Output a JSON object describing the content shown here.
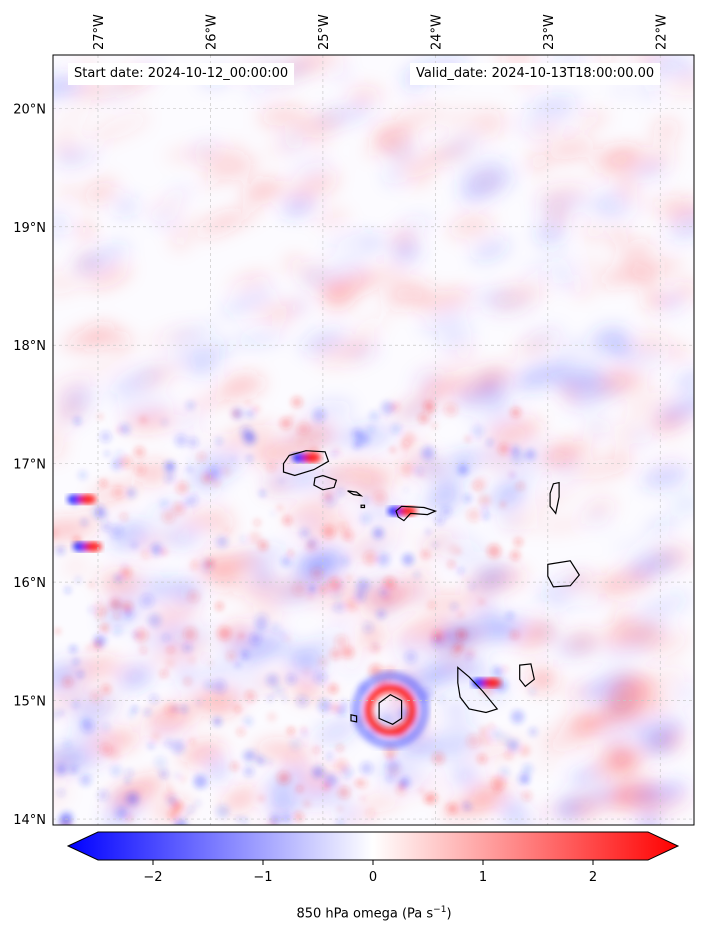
{
  "header": {
    "start_label": "Start date: 2024-10-12_00:00:00",
    "valid_label": "Valid_date: 2024-10-13T18:00:00.00"
  },
  "axes": {
    "lon_ticks": [
      "27°W",
      "26°W",
      "25°W",
      "24°W",
      "23°W",
      "22°W"
    ],
    "lat_ticks": [
      "20°N",
      "19°N",
      "18°N",
      "17°N",
      "16°N",
      "15°N",
      "14°N"
    ],
    "lon_values": [
      -27,
      -26,
      -25,
      -24,
      -23,
      -22
    ],
    "lat_values": [
      20,
      19,
      18,
      17,
      16,
      15,
      14
    ],
    "lon_range": [
      -27.4,
      -21.7
    ],
    "lat_range": [
      13.95,
      20.45
    ],
    "gridlines": true
  },
  "colorbar": {
    "title": "850 hPa omega (Pa s",
    "title_exp": "−1",
    "title_suffix": ")",
    "tick_labels": [
      "−2",
      "−1",
      "0",
      "1",
      "2"
    ],
    "tick_values": [
      -2,
      -1,
      0,
      1,
      2
    ],
    "range": [
      -2.5,
      2.5
    ],
    "extend": "both",
    "colors": {
      "low": "#0000ff",
      "mid": "#ffffff",
      "high": "#ff0000"
    }
  },
  "field": {
    "variable": "850 hPa omega",
    "features": [
      {
        "lon": -24.4,
        "lat": 14.92,
        "kind": "ring",
        "strength": 2.5
      },
      {
        "lon": -25.15,
        "lat": 17.05,
        "kind": "dipole",
        "strength": 2.2
      },
      {
        "lon": -24.3,
        "lat": 16.6,
        "kind": "dipole",
        "strength": 1.8
      },
      {
        "lon": -23.55,
        "lat": 15.15,
        "kind": "dipole",
        "strength": 1.5
      },
      {
        "lon": -27.15,
        "lat": 16.7,
        "kind": "dipole",
        "strength": 2.0
      },
      {
        "lon": -27.1,
        "lat": 16.3,
        "kind": "dipole",
        "strength": 1.5
      }
    ]
  },
  "islands": [
    {
      "name": "Santo Antao",
      "points": [
        [
          -25.35,
          17.0
        ],
        [
          -25.3,
          17.07
        ],
        [
          -25.15,
          17.11
        ],
        [
          -24.98,
          17.1
        ],
        [
          -24.95,
          17.02
        ],
        [
          -25.08,
          16.95
        ],
        [
          -25.25,
          16.9
        ],
        [
          -25.35,
          16.93
        ]
      ]
    },
    {
      "name": "Sao Vicente",
      "points": [
        [
          -25.07,
          16.88
        ],
        [
          -25.0,
          16.9
        ],
        [
          -24.88,
          16.86
        ],
        [
          -24.9,
          16.8
        ],
        [
          -25.0,
          16.78
        ],
        [
          -25.08,
          16.82
        ]
      ]
    },
    {
      "name": "Santa Luzia",
      "points": [
        [
          -24.78,
          16.77
        ],
        [
          -24.7,
          16.76
        ],
        [
          -24.66,
          16.73
        ],
        [
          -24.73,
          16.74
        ]
      ]
    },
    {
      "name": "Branco",
      "points": [
        [
          -24.66,
          16.65
        ],
        [
          -24.63,
          16.65
        ],
        [
          -24.63,
          16.63
        ],
        [
          -24.66,
          16.63
        ]
      ]
    },
    {
      "name": "Sao Nicolau",
      "points": [
        [
          -24.35,
          16.6
        ],
        [
          -24.3,
          16.64
        ],
        [
          -24.1,
          16.63
        ],
        [
          -24.0,
          16.6
        ],
        [
          -24.07,
          16.57
        ],
        [
          -24.22,
          16.58
        ],
        [
          -24.28,
          16.52
        ],
        [
          -24.33,
          16.55
        ]
      ]
    },
    {
      "name": "Sal",
      "points": [
        [
          -22.95,
          16.83
        ],
        [
          -22.9,
          16.84
        ],
        [
          -22.9,
          16.72
        ],
        [
          -22.93,
          16.58
        ],
        [
          -22.98,
          16.64
        ],
        [
          -22.98,
          16.75
        ]
      ]
    },
    {
      "name": "Boa Vista",
      "points": [
        [
          -23.0,
          16.15
        ],
        [
          -22.8,
          16.18
        ],
        [
          -22.72,
          16.06
        ],
        [
          -22.8,
          15.97
        ],
        [
          -22.95,
          15.96
        ],
        [
          -23.0,
          16.05
        ]
      ]
    },
    {
      "name": "Maio",
      "points": [
        [
          -23.25,
          15.3
        ],
        [
          -23.15,
          15.31
        ],
        [
          -23.12,
          15.18
        ],
        [
          -23.2,
          15.12
        ],
        [
          -23.25,
          15.18
        ]
      ]
    },
    {
      "name": "Santiago",
      "points": [
        [
          -23.8,
          15.28
        ],
        [
          -23.7,
          15.2
        ],
        [
          -23.58,
          15.08
        ],
        [
          -23.45,
          14.93
        ],
        [
          -23.55,
          14.9
        ],
        [
          -23.7,
          14.93
        ],
        [
          -23.78,
          15.03
        ],
        [
          -23.8,
          15.15
        ]
      ]
    },
    {
      "name": "Fogo",
      "points": [
        [
          -24.5,
          14.98
        ],
        [
          -24.4,
          15.05
        ],
        [
          -24.3,
          15.0
        ],
        [
          -24.3,
          14.85
        ],
        [
          -24.38,
          14.8
        ],
        [
          -24.5,
          14.85
        ]
      ]
    },
    {
      "name": "Brava",
      "points": [
        [
          -24.75,
          14.88
        ],
        [
          -24.7,
          14.87
        ],
        [
          -24.7,
          14.82
        ],
        [
          -24.75,
          14.83
        ]
      ]
    }
  ]
}
